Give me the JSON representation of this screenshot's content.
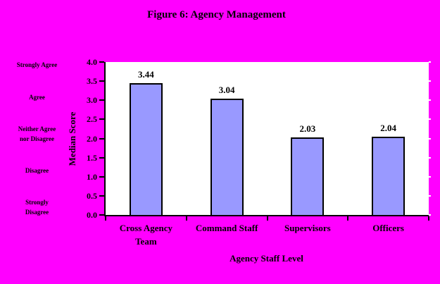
{
  "title": "Figure 6: Agency Management",
  "colors": {
    "background": "#FF00FF",
    "plot_background": "#FFFFFF",
    "bar_fill": "#9999FF",
    "bar_border": "#000000",
    "axis": "#000000",
    "text": "#000000"
  },
  "rating_scale_labels": [
    {
      "lines": [
        "Strongly Agree"
      ]
    },
    {
      "lines": [
        "Agree"
      ]
    },
    {
      "lines": [
        "Neither Agree",
        "nor Disagree"
      ]
    },
    {
      "lines": [
        "Disagree"
      ]
    },
    {
      "lines": [
        "Strongly",
        "Disagree"
      ]
    }
  ],
  "chart_data": {
    "type": "bar",
    "title": "Figure 6: Agency Management",
    "categories": [
      "Cross Agency Team",
      "Command Staff",
      "Supervisors",
      "Officers"
    ],
    "values": [
      3.44,
      3.04,
      2.03,
      2.04
    ],
    "data_labels": [
      "3.44",
      "3.04",
      "2.03",
      "2.04"
    ],
    "xlabel": "Agency Staff Level",
    "ylabel": "Median Score",
    "ylim": [
      0.0,
      4.0
    ],
    "ytick_labels": [
      "4.0",
      "3.5",
      "3.0",
      "2.5",
      "2.0",
      "1.5",
      "1.0",
      "0.5",
      "0.0"
    ],
    "grid": false,
    "legend": "none",
    "bar_color": "#9999FF"
  }
}
